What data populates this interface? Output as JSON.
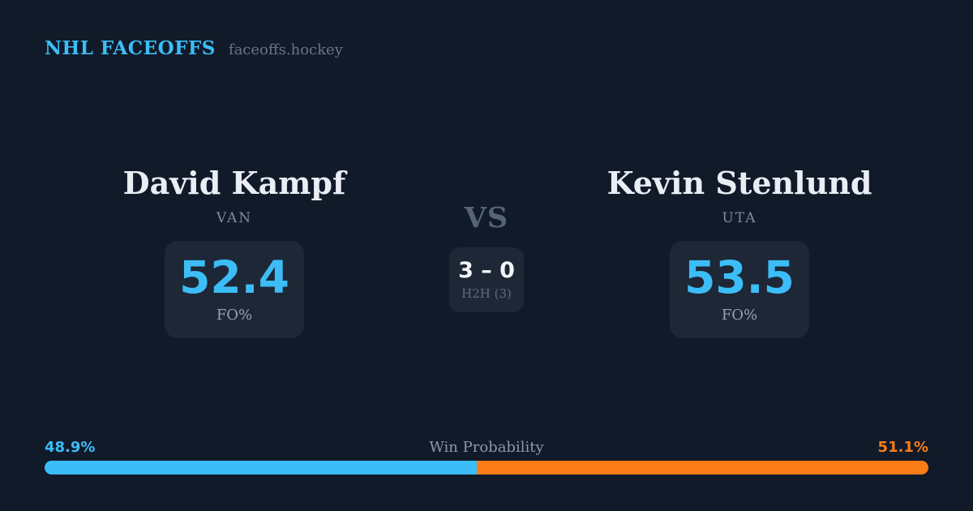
{
  "header": {
    "brand": "NHL FACEOFFS",
    "site": "faceoffs.hockey"
  },
  "matchup": {
    "player1": {
      "name": "David Kampf",
      "team": "VAN",
      "stat_value": "52.4",
      "stat_label": "FO%"
    },
    "vs_label": "VS",
    "h2h": {
      "score": "3 – 0",
      "label": "H2H (3)"
    },
    "player2": {
      "name": "Kevin Stenlund",
      "team": "UTA",
      "stat_value": "53.5",
      "stat_label": "FO%"
    }
  },
  "win_probability": {
    "label": "Win Probability",
    "left_pct_text": "48.9%",
    "right_pct_text": "51.1%",
    "left_value": 48.9,
    "right_value": 51.1
  },
  "colors": {
    "background": "#111a29",
    "card": "#1d2736",
    "accent_blue": "#3cbdf7",
    "accent_orange": "#f97c16"
  }
}
